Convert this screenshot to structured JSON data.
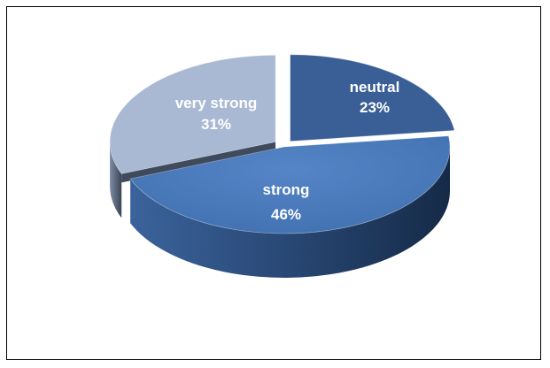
{
  "chart_data": {
    "type": "pie",
    "style": "3d-exploded",
    "title": "",
    "legend": "none",
    "slices": [
      {
        "label": "neutral",
        "value": 23,
        "value_label": "23%",
        "color": "#3a5f96",
        "side_color": "#1f3556"
      },
      {
        "label": "strong",
        "value": 46,
        "value_label": "46%",
        "color": "#4a7bbd",
        "side_color": "#27456e"
      },
      {
        "label": "very strong",
        "value": 31,
        "value_label": "31%",
        "color": "#a9b9d4",
        "side_color": "#3f4a5c"
      }
    ]
  }
}
